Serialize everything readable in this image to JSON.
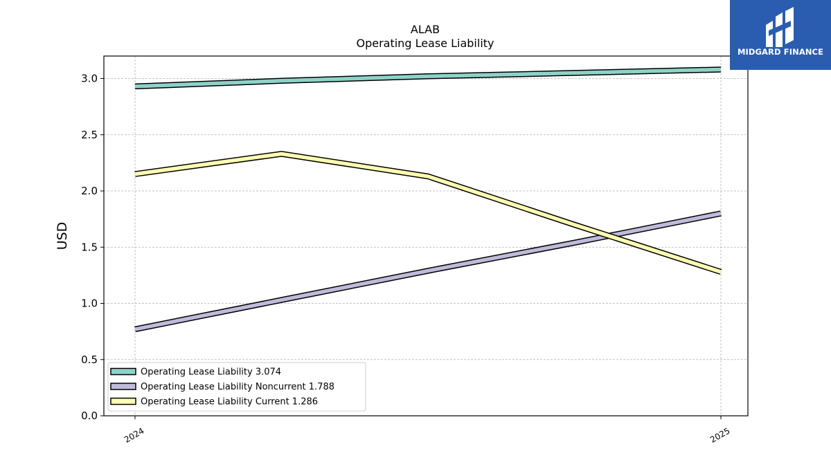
{
  "chart_data": {
    "type": "line",
    "title": "ALAB",
    "subtitle": "Operating Lease Liability",
    "ylabel": "USD",
    "xlabel": "",
    "ylim": [
      0,
      3.2
    ],
    "yticks": [
      "0.0",
      "0.5",
      "1.0",
      "1.5",
      "2.0",
      "2.5",
      "3.0"
    ],
    "xtick_labels": [
      "2024",
      "2025"
    ],
    "grid": true,
    "legend_position": "lower-left",
    "series": [
      {
        "name": "Operating Lease Liability",
        "legend_label": "Operating Lease Liability  3.074",
        "color": "#8dd3c7",
        "values": [
          2.93,
          2.98,
          3.02,
          3.05,
          3.08
        ]
      },
      {
        "name": "Operating Lease Liability Noncurrent",
        "legend_label": "Operating Lease Liability Noncurrent  1.788",
        "color": "#bebada",
        "values": [
          0.77,
          1.03,
          1.29,
          1.54,
          1.8
        ]
      },
      {
        "name": "Operating Lease Liability Current",
        "legend_label": "Operating Lease Liability Current  1.286",
        "color": "#ffffb3",
        "values": [
          2.15,
          2.33,
          2.13,
          1.7,
          1.28
        ]
      }
    ]
  },
  "logo": {
    "text": "MIDGARD FINANCE"
  }
}
